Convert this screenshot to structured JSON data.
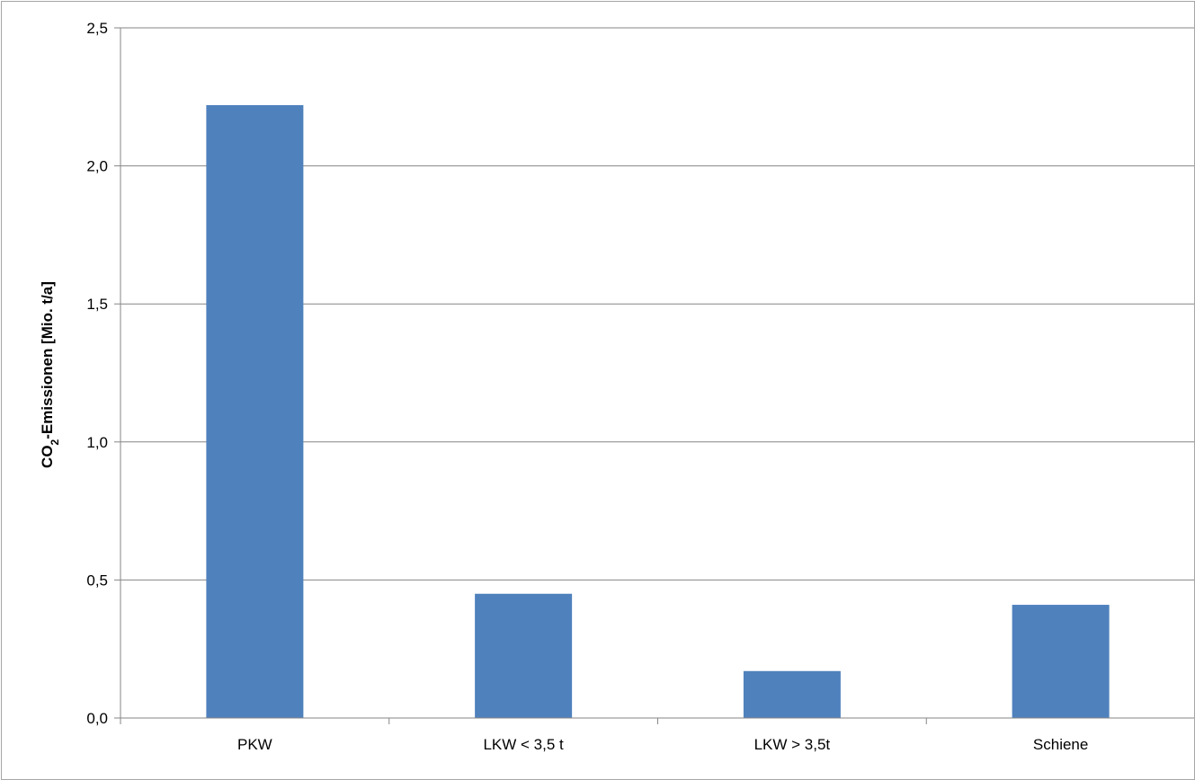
{
  "chart_data": {
    "type": "bar",
    "title": "",
    "xlabel": "",
    "ylabel": "CO2-Emissionen [Mio. t/a]",
    "ylabel_parts": {
      "before": "CO",
      "subscript": "2",
      "after": "-Emissionen [Mio. t/a]"
    },
    "categories": [
      "PKW",
      "LKW < 3,5 t",
      "LKW > 3,5t",
      "Schiene"
    ],
    "values": [
      2.22,
      0.45,
      0.17,
      0.41
    ],
    "ylim": [
      0,
      2.5
    ],
    "y_ticks": [
      0,
      0.5,
      1.0,
      1.5,
      2.0,
      2.5
    ],
    "y_tick_labels": [
      "0,0",
      "0,5",
      "1,0",
      "1,5",
      "2,0",
      "2,5"
    ],
    "grid": true,
    "legend": "none",
    "bar_color": "#4f81bd",
    "grid_color": "#868686"
  }
}
